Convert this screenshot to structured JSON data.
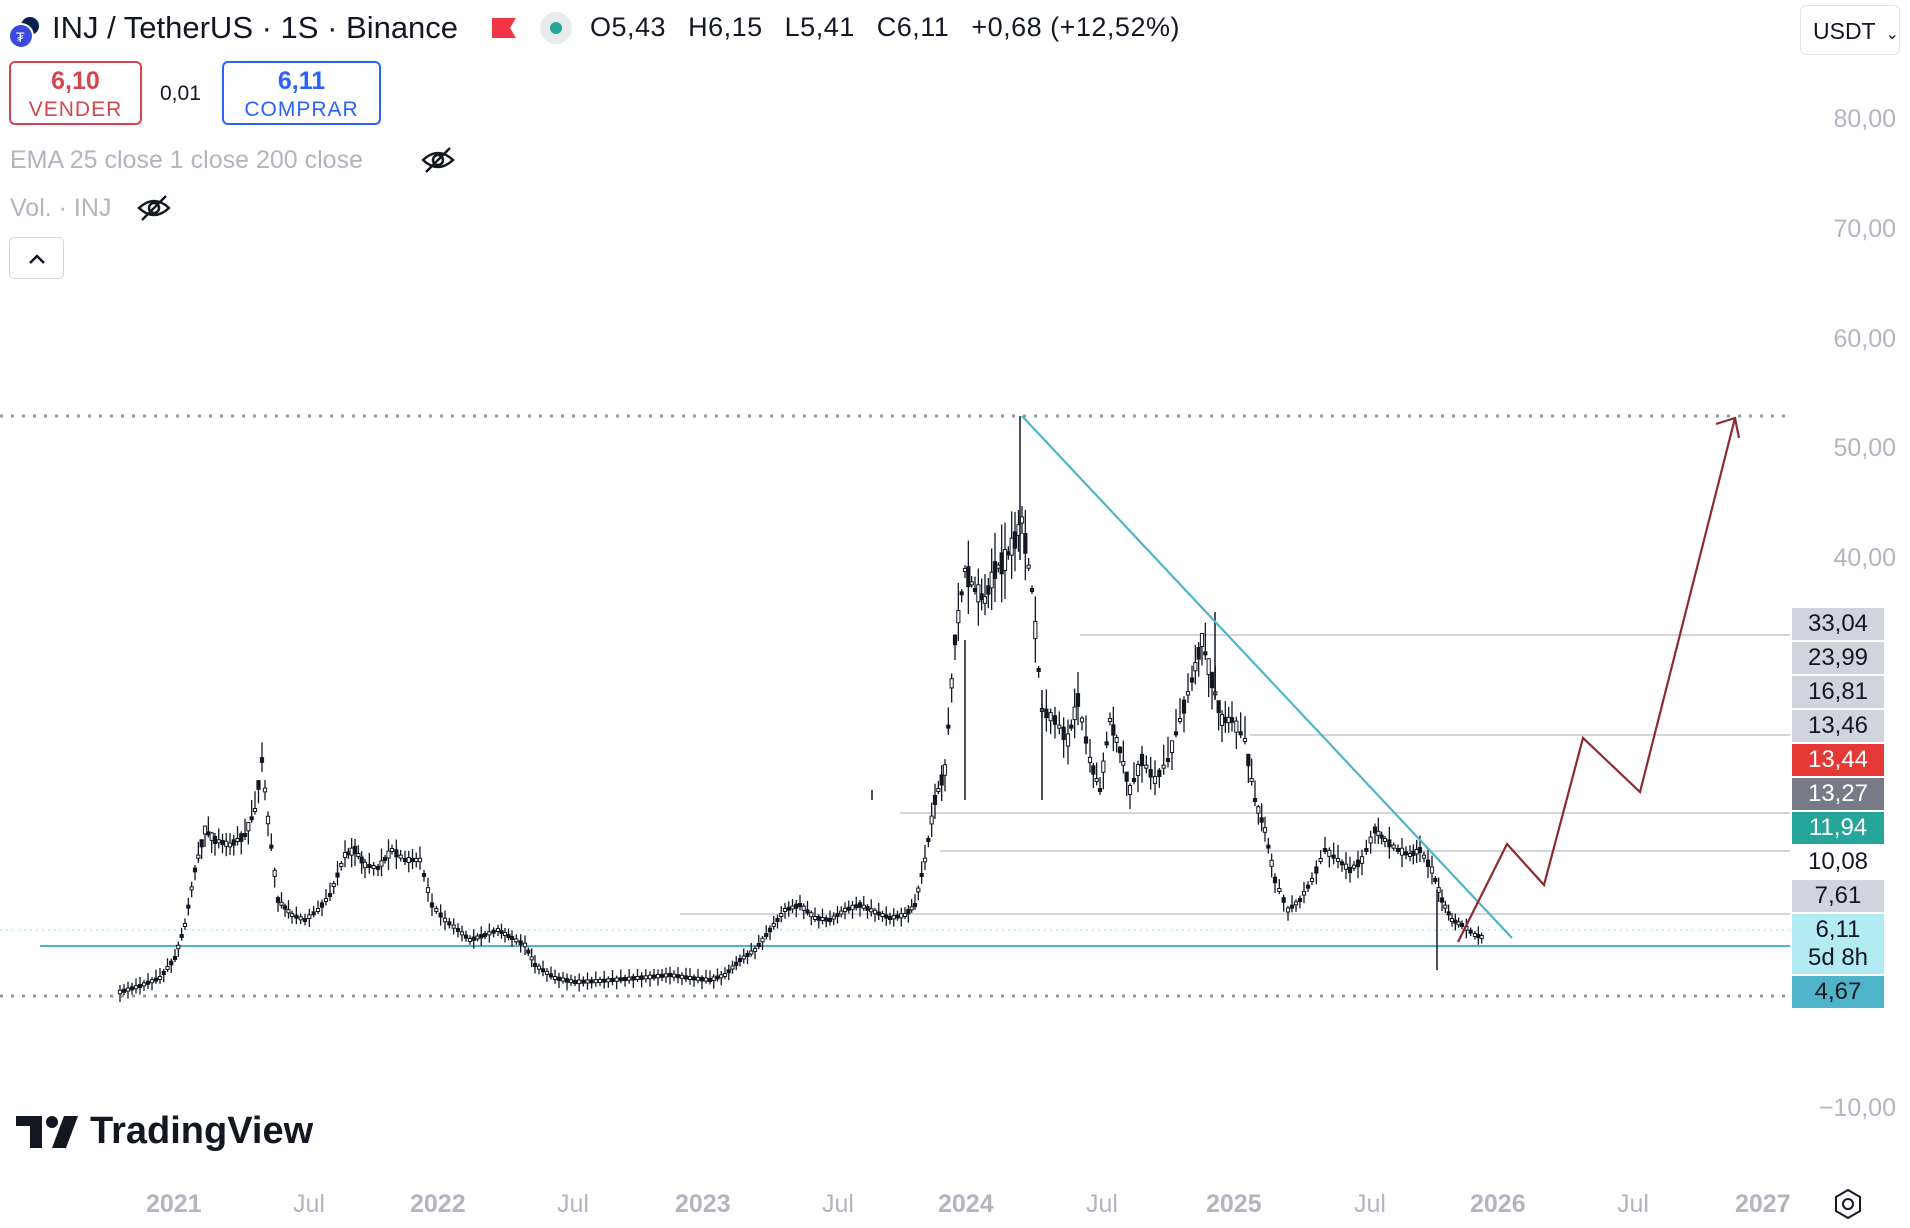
{
  "header": {
    "symbol_title": "INJ / TetherUS · 1S · Binance",
    "ohlc": {
      "open": "O5,43",
      "high": "H6,15",
      "low": "L5,41",
      "close": "C6,11",
      "change": "+0,68 (+12,52%)"
    },
    "currency": "USDT"
  },
  "trade": {
    "sell_price": "6,10",
    "sell_label": "VENDER",
    "spread": "0,01",
    "buy_price": "6,11",
    "buy_label": "COMPRAR"
  },
  "indicators": {
    "ema": "EMA 25 close 1 close 200 close",
    "volume": "Vol. · INJ"
  },
  "y_axis": {
    "labels": [
      "80,00",
      "70,00",
      "60,00",
      "50,00",
      "40,00",
      "−10,00"
    ]
  },
  "price_tags": [
    {
      "value": "33,04",
      "bg": "#d1d4dc",
      "fg": "#131722"
    },
    {
      "value": "23,99",
      "bg": "#d1d4dc",
      "fg": "#131722"
    },
    {
      "value": "16,81",
      "bg": "#d1d4dc",
      "fg": "#131722"
    },
    {
      "value": "13,46",
      "bg": "#d1d4dc",
      "fg": "#131722"
    },
    {
      "value": "13,44",
      "bg": "#e53935",
      "fg": "#ffffff"
    },
    {
      "value": "13,27",
      "bg": "#787b86",
      "fg": "#ffffff"
    },
    {
      "value": "11,94",
      "bg": "#26a69a",
      "fg": "#ffffff"
    },
    {
      "value": "10,08",
      "bg": "#ffffff",
      "fg": "#131722"
    },
    {
      "value": "7,61",
      "bg": "#d1d4dc",
      "fg": "#131722"
    },
    {
      "value": "6,11",
      "bg": "#b2ebf2",
      "fg": "#131722"
    },
    {
      "value": "5d 8h",
      "bg": "#b2ebf2",
      "fg": "#131722"
    },
    {
      "value": "4,67",
      "bg": "#4fb4c9",
      "fg": "#131722"
    }
  ],
  "x_axis": {
    "labels": [
      "2021",
      "Jul",
      "2022",
      "Jul",
      "2023",
      "Jul",
      "2024",
      "Jul",
      "2025",
      "Jul",
      "2026",
      "Jul",
      "2027"
    ]
  },
  "branding": {
    "name": "TradingView"
  },
  "colors": {
    "trendline": "#4fb4c9",
    "projection": "#8b2a2f",
    "candle": "#131722",
    "sell": "#d5464c",
    "buy": "#2962ff"
  }
}
